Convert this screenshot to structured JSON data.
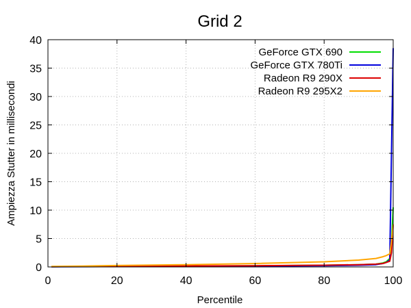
{
  "chart_data": {
    "type": "line",
    "title": "Grid 2",
    "xlabel": "Percentile",
    "ylabel": "Ampiezza Stutter in millisecondi",
    "xlim": [
      0,
      100
    ],
    "ylim": [
      0,
      40
    ],
    "xticks": [
      0,
      20,
      40,
      60,
      80,
      100
    ],
    "yticks": [
      0,
      5,
      10,
      15,
      20,
      25,
      30,
      35,
      40
    ],
    "grid": true,
    "legend_position": "top-right",
    "series": [
      {
        "name": "GeForce GTX 690",
        "color": "#00dd00",
        "points": [
          [
            1,
            0.05
          ],
          [
            10,
            0.08
          ],
          [
            20,
            0.1
          ],
          [
            40,
            0.15
          ],
          [
            60,
            0.2
          ],
          [
            80,
            0.3
          ],
          [
            90,
            0.4
          ],
          [
            95,
            0.5
          ],
          [
            97,
            0.7
          ],
          [
            98,
            0.9
          ],
          [
            99,
            1.5
          ],
          [
            99.5,
            4
          ],
          [
            100,
            10.5
          ]
        ]
      },
      {
        "name": "GeForce GTX 780Ti",
        "color": "#0000dd",
        "points": [
          [
            1,
            0.03
          ],
          [
            10,
            0.05
          ],
          [
            20,
            0.07
          ],
          [
            40,
            0.1
          ],
          [
            60,
            0.15
          ],
          [
            80,
            0.2
          ],
          [
            90,
            0.3
          ],
          [
            95,
            0.4
          ],
          [
            97,
            0.6
          ],
          [
            98,
            0.8
          ],
          [
            99,
            1.2
          ],
          [
            99.5,
            20
          ],
          [
            100,
            38.5
          ]
        ]
      },
      {
        "name": "Radeon R9 290X",
        "color": "#dd0000",
        "points": [
          [
            1,
            0.05
          ],
          [
            10,
            0.1
          ],
          [
            20,
            0.12
          ],
          [
            40,
            0.18
          ],
          [
            60,
            0.22
          ],
          [
            80,
            0.3
          ],
          [
            90,
            0.4
          ],
          [
            95,
            0.5
          ],
          [
            97,
            0.6
          ],
          [
            98,
            0.8
          ],
          [
            99,
            1.0
          ],
          [
            99.5,
            2.5
          ],
          [
            100,
            7.5
          ]
        ]
      },
      {
        "name": "Radeon R9 295X2",
        "color": "#ffa500",
        "points": [
          [
            1,
            0.1
          ],
          [
            10,
            0.15
          ],
          [
            20,
            0.25
          ],
          [
            40,
            0.4
          ],
          [
            60,
            0.6
          ],
          [
            80,
            0.9
          ],
          [
            90,
            1.2
          ],
          [
            95,
            1.5
          ],
          [
            97,
            1.8
          ],
          [
            98,
            2.0
          ],
          [
            99,
            2.3
          ],
          [
            99.5,
            4.5
          ],
          [
            100,
            7.5
          ]
        ]
      }
    ]
  }
}
